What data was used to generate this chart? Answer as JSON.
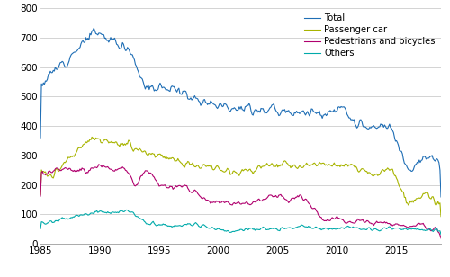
{
  "colors": {
    "total": "#1f6eb5",
    "passenger": "#a8b400",
    "pedestrians": "#b0006e",
    "others": "#00aaaa"
  },
  "legend": [
    "Total",
    "Passenger car",
    "Pedestrians and bicycles",
    "Others"
  ],
  "xlim": [
    1985.0,
    2018.75
  ],
  "ylim": [
    0,
    800
  ],
  "yticks": [
    0,
    100,
    200,
    300,
    400,
    500,
    600,
    700,
    800
  ],
  "xticks": [
    1985,
    1990,
    1995,
    2000,
    2005,
    2010,
    2015
  ],
  "background_color": "#ffffff",
  "grid_color": "#cccccc",
  "linewidth": 0.8
}
